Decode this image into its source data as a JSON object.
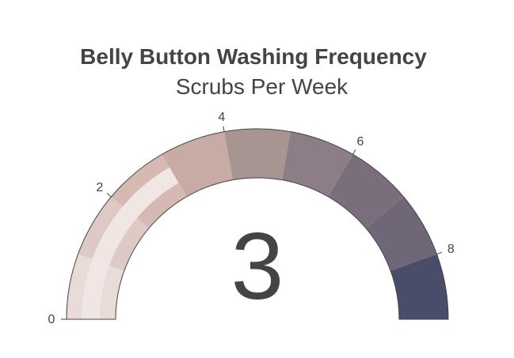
{
  "chart_data": {
    "type": "gauge",
    "title": "Belly Button Washing Frequency",
    "subtitle": "Scrubs Per Week",
    "value": 3,
    "range": [
      0,
      9
    ],
    "ticks": [
      {
        "value": 0,
        "label": "0"
      },
      {
        "value": 2,
        "label": "2"
      },
      {
        "value": 4,
        "label": "4"
      },
      {
        "value": 6,
        "label": "6"
      },
      {
        "value": 8,
        "label": "8"
      }
    ],
    "steps": [
      {
        "from": 0,
        "to": 1,
        "color": "#e9dcd8"
      },
      {
        "from": 1,
        "to": 2,
        "color": "#dfc9c4"
      },
      {
        "from": 2,
        "to": 3,
        "color": "#d5b9b2"
      },
      {
        "from": 3,
        "to": 4,
        "color": "#c9aba5"
      },
      {
        "from": 4,
        "to": 5,
        "color": "#a79592"
      },
      {
        "from": 5,
        "to": 6,
        "color": "#8c7d86"
      },
      {
        "from": 6,
        "to": 7,
        "color": "#7a6e7c"
      },
      {
        "from": 7,
        "to": 8,
        "color": "#6f6677"
      },
      {
        "from": 8,
        "to": 9,
        "color": "#4a4d6a"
      }
    ],
    "bar_color": "#f0e6e3",
    "border_color": "#444444",
    "value_color": "#444444"
  }
}
